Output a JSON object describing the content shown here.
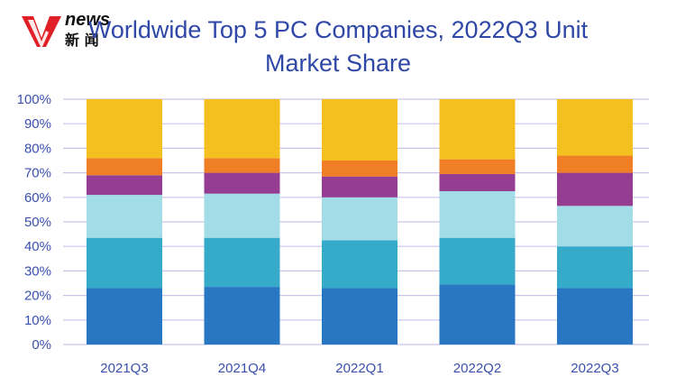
{
  "logo": {
    "brand": "news",
    "sub": "新 闻"
  },
  "chart_data": {
    "type": "bar",
    "stacked": true,
    "title_lines": [
      "Worldwide Top 5 PC Companies, 2022Q3 Unit",
      "Market Share"
    ],
    "categories": [
      "2021Q3",
      "2021Q4",
      "2022Q1",
      "2022Q2",
      "2022Q3"
    ],
    "y_ticks": [
      "0%",
      "10%",
      "20%",
      "30%",
      "40%",
      "50%",
      "60%",
      "70%",
      "80%",
      "90%",
      "100%"
    ],
    "ylim": [
      0,
      100
    ],
    "grid": true,
    "series": [
      {
        "color": "#2777c3",
        "values": [
          23,
          23.5,
          23,
          24.5,
          23
        ]
      },
      {
        "color": "#35aac9",
        "values": [
          20.5,
          20,
          19.5,
          19,
          17
        ]
      },
      {
        "color": "#a1dce7",
        "values": [
          17.5,
          18,
          17.5,
          19,
          16.5
        ]
      },
      {
        "color": "#943d93",
        "values": [
          8,
          8.5,
          8.5,
          7,
          13.5
        ]
      },
      {
        "color": "#f07e24",
        "values": [
          7,
          6,
          6.5,
          6,
          7
        ]
      },
      {
        "color": "#f4c01f",
        "values": [
          24,
          24,
          25,
          24.5,
          23
        ]
      }
    ]
  }
}
